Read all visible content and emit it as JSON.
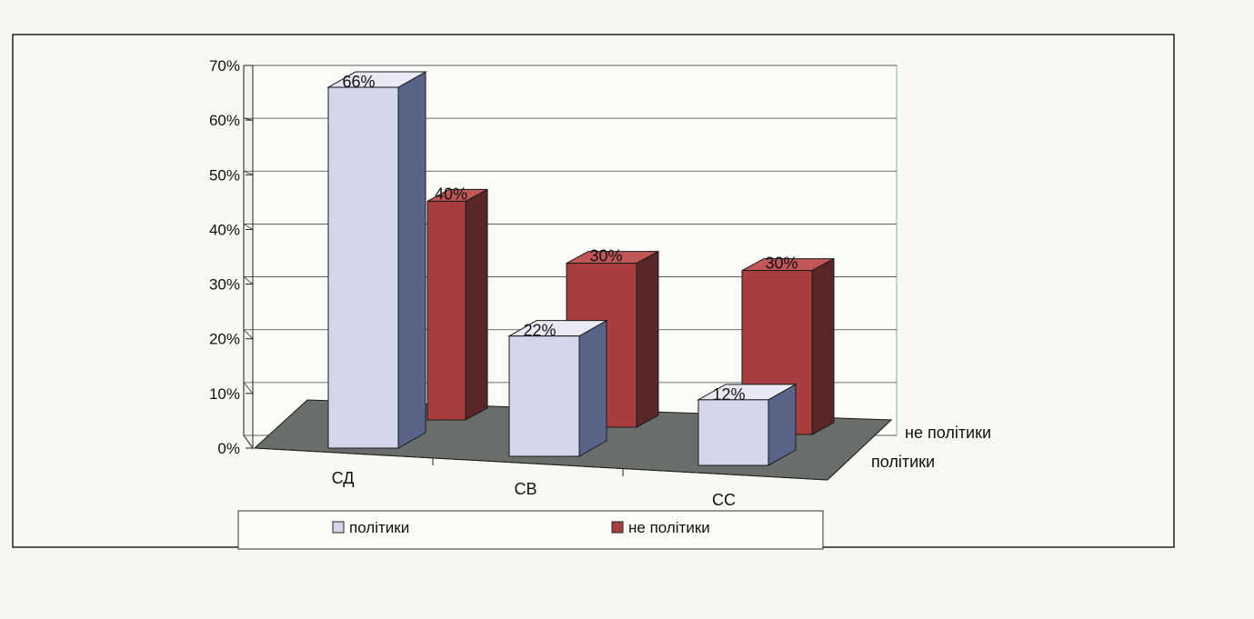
{
  "chart_data": {
    "type": "bar",
    "categories": [
      "СД",
      "СВ",
      "СС"
    ],
    "series": [
      {
        "name": "політики",
        "values": [
          66,
          22,
          12
        ],
        "labels": [
          "66%",
          "22%",
          "12%"
        ]
      },
      {
        "name": "не політики",
        "values": [
          40,
          30,
          30
        ],
        "labels": [
          "40%",
          "30%",
          "30%"
        ]
      }
    ],
    "y_ticks": [
      "0%",
      "10%",
      "20%",
      "30%",
      "40%",
      "50%",
      "60%",
      "70%"
    ],
    "ylim": [
      0,
      70
    ],
    "depth_axis_labels": [
      "політики",
      "не політики"
    ],
    "legend": [
      "політики",
      "не політики"
    ],
    "legend_placement": "bottom",
    "grid": true,
    "style": "3d-clustered",
    "colors": {
      "series_front": [
        "#d4d6ec",
        "#a83d3f"
      ],
      "series_side": [
        "#5a6488",
        "#5a2628"
      ],
      "series_top": [
        "#e8e9f5",
        "#c05657"
      ],
      "floor": "#6a6e6a",
      "background": "#f6f7f3"
    }
  }
}
